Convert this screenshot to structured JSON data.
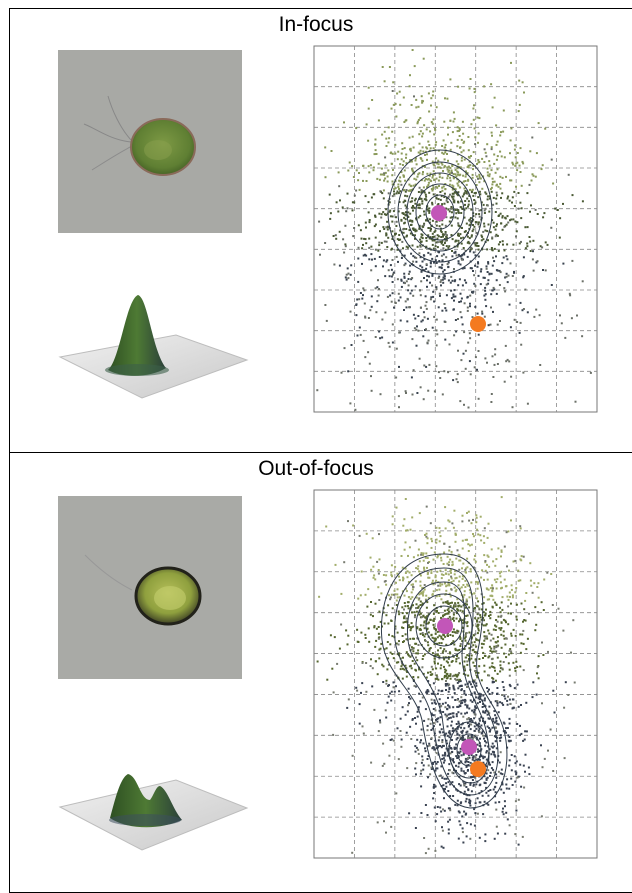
{
  "panels": [
    {
      "id": "in-focus",
      "title": "In-focus"
    },
    {
      "id": "out-of-focus",
      "title": "Out-of-focus"
    }
  ],
  "colors": {
    "micrograph_bg": "#a9aaa6",
    "cell_green": "#6a8a3a",
    "peak_green": "#3d6b2a",
    "contour": "#2f3b4a",
    "grid": "#777777",
    "magenta_point": "#c256b8",
    "orange_point": "#f47a20"
  }
}
